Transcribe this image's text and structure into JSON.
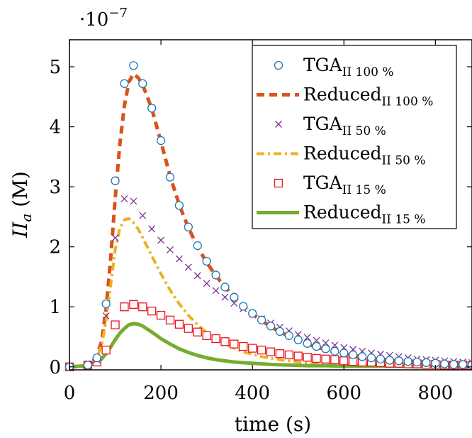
{
  "chart_data": {
    "type": "line",
    "xlabel": "time (s)",
    "ylabel_main": "II",
    "ylabel_sub": "a",
    "ylabel_unit": " (M)",
    "y_exponent_base": "·10",
    "y_exponent_power": "−7",
    "xlim": [
      0,
      880
    ],
    "ylim": [
      -0.05,
      5.45
    ],
    "x_ticks": [
      0,
      200,
      400,
      600,
      800
    ],
    "x_tick_labels": [
      "0",
      "200",
      "400",
      "600",
      "800"
    ],
    "y_ticks": [
      0,
      1,
      2,
      3,
      4,
      5
    ],
    "y_tick_labels": [
      "0",
      "1",
      "2",
      "3",
      "4",
      "5"
    ],
    "grid": false,
    "legend_position": "top-right",
    "series": [
      {
        "name_main": "TGA",
        "name_sub": "II 100 %",
        "style": "marker",
        "marker": "circle",
        "color": "#1f77b4",
        "x": [
          0,
          40,
          60,
          80,
          100,
          120,
          140,
          160,
          180,
          200,
          220,
          240,
          260,
          280,
          300,
          320,
          340,
          360,
          380,
          400,
          420,
          440,
          460,
          480,
          500,
          520,
          540,
          560,
          580,
          600,
          620,
          640,
          660,
          680,
          700,
          720,
          740,
          760,
          780,
          800,
          820,
          840,
          860,
          880
        ],
        "y": [
          0.0,
          0.03,
          0.15,
          1.05,
          3.1,
          4.72,
          5.02,
          4.72,
          4.31,
          3.77,
          3.16,
          2.69,
          2.33,
          2.02,
          1.76,
          1.53,
          1.33,
          1.16,
          1.01,
          0.89,
          0.78,
          0.68,
          0.59,
          0.52,
          0.45,
          0.39,
          0.34,
          0.3,
          0.26,
          0.23,
          0.2,
          0.17,
          0.15,
          0.13,
          0.11,
          0.1,
          0.09,
          0.08,
          0.07,
          0.06,
          0.05,
          0.04,
          0.04,
          0.03
        ]
      },
      {
        "name_main": "Reduced",
        "name_sub": "II 100 %",
        "style": "dashed",
        "color": "#d9531e",
        "x": [
          0,
          30,
          50,
          60,
          70,
          80,
          90,
          100,
          110,
          120,
          130,
          140,
          150,
          160,
          180,
          200,
          220,
          240,
          260,
          280,
          300,
          320,
          340,
          360,
          380,
          400,
          420,
          440,
          460,
          480,
          500,
          520,
          540,
          560,
          580,
          600,
          620,
          640,
          660,
          680,
          700,
          720,
          740,
          760,
          780,
          800,
          820,
          840,
          860,
          880
        ],
        "y": [
          0.0,
          0.01,
          0.08,
          0.18,
          0.42,
          0.95,
          1.8,
          2.8,
          3.7,
          4.35,
          4.75,
          4.88,
          4.82,
          4.7,
          4.3,
          3.75,
          3.18,
          2.7,
          2.32,
          2.0,
          1.74,
          1.52,
          1.33,
          1.16,
          1.01,
          0.88,
          0.77,
          0.67,
          0.58,
          0.51,
          0.44,
          0.38,
          0.33,
          0.29,
          0.25,
          0.22,
          0.19,
          0.17,
          0.15,
          0.13,
          0.11,
          0.1,
          0.09,
          0.08,
          0.07,
          0.06,
          0.05,
          0.05,
          0.04,
          0.04
        ]
      },
      {
        "name_main": "TGA",
        "name_sub": "II 50 %",
        "style": "marker",
        "marker": "cross",
        "color": "#7e2f8e",
        "x": [
          0,
          40,
          60,
          80,
          100,
          120,
          140,
          160,
          180,
          200,
          220,
          240,
          260,
          280,
          300,
          320,
          340,
          360,
          380,
          400,
          420,
          440,
          460,
          480,
          500,
          520,
          540,
          560,
          580,
          600,
          620,
          640,
          660,
          680,
          700,
          720,
          740,
          760,
          780,
          800,
          820,
          840,
          860,
          880
        ],
        "y": [
          0.0,
          0.03,
          0.12,
          0.85,
          2.15,
          2.8,
          2.76,
          2.52,
          2.3,
          2.11,
          1.95,
          1.8,
          1.66,
          1.52,
          1.39,
          1.27,
          1.16,
          1.06,
          0.97,
          0.88,
          0.8,
          0.73,
          0.66,
          0.6,
          0.54,
          0.49,
          0.44,
          0.4,
          0.36,
          0.32,
          0.29,
          0.26,
          0.23,
          0.21,
          0.19,
          0.17,
          0.15,
          0.13,
          0.12,
          0.11,
          0.1,
          0.09,
          0.08,
          0.07
        ]
      },
      {
        "name_main": "Reduced",
        "name_sub": "II 50 %",
        "style": "dashdot",
        "color": "#edb120",
        "x": [
          0,
          30,
          50,
          60,
          70,
          80,
          90,
          100,
          110,
          120,
          130,
          140,
          150,
          160,
          180,
          200,
          220,
          240,
          260,
          280,
          300,
          320,
          340,
          360,
          380,
          400,
          420,
          440,
          460,
          480,
          500,
          520,
          540,
          560,
          600,
          640,
          680,
          720,
          760,
          800,
          840,
          880
        ],
        "y": [
          0.0,
          0.01,
          0.07,
          0.15,
          0.35,
          0.75,
          1.35,
          1.95,
          2.3,
          2.45,
          2.47,
          2.4,
          2.3,
          2.15,
          1.85,
          1.55,
          1.28,
          1.05,
          0.86,
          0.7,
          0.57,
          0.47,
          0.38,
          0.31,
          0.25,
          0.21,
          0.17,
          0.14,
          0.12,
          0.1,
          0.08,
          0.07,
          0.06,
          0.05,
          0.04,
          0.03,
          0.02,
          0.02,
          0.01,
          0.01,
          0.01,
          0.01
        ]
      },
      {
        "name_main": "TGA",
        "name_sub": "II 15 %",
        "style": "marker",
        "marker": "square",
        "color": "#e8141e",
        "x": [
          0,
          40,
          60,
          80,
          100,
          120,
          140,
          160,
          180,
          200,
          220,
          240,
          260,
          280,
          300,
          320,
          340,
          360,
          380,
          400,
          420,
          440,
          460,
          480,
          500,
          520,
          540,
          560,
          580,
          600,
          620,
          640,
          660,
          680,
          700,
          720,
          740,
          760,
          780,
          800,
          820,
          840,
          860,
          880
        ],
        "y": [
          0.0,
          0.03,
          0.08,
          0.28,
          0.7,
          1.0,
          1.04,
          1.0,
          0.93,
          0.86,
          0.78,
          0.71,
          0.64,
          0.58,
          0.52,
          0.47,
          0.42,
          0.38,
          0.34,
          0.31,
          0.28,
          0.25,
          0.22,
          0.2,
          0.18,
          0.16,
          0.14,
          0.13,
          0.12,
          0.1,
          0.09,
          0.08,
          0.08,
          0.07,
          0.06,
          0.06,
          0.05,
          0.05,
          0.04,
          0.04,
          0.03,
          0.03,
          0.03,
          0.02
        ]
      },
      {
        "name_main": "Reduced",
        "name_sub": "II 15 %",
        "style": "solid",
        "color": "#77ac30",
        "x": [
          0,
          40,
          60,
          70,
          80,
          90,
          100,
          110,
          120,
          130,
          140,
          150,
          160,
          180,
          200,
          220,
          240,
          260,
          280,
          300,
          320,
          340,
          360,
          380,
          400,
          440,
          480,
          520,
          560,
          600,
          640,
          680,
          720,
          760,
          800,
          840,
          880
        ],
        "y": [
          0.0,
          0.02,
          0.07,
          0.13,
          0.22,
          0.33,
          0.45,
          0.56,
          0.64,
          0.7,
          0.72,
          0.71,
          0.68,
          0.58,
          0.47,
          0.38,
          0.3,
          0.24,
          0.19,
          0.15,
          0.12,
          0.1,
          0.08,
          0.07,
          0.06,
          0.04,
          0.03,
          0.02,
          0.02,
          0.01,
          0.01,
          0.01,
          0.01,
          0.0,
          0.0,
          0.0,
          0.0
        ]
      }
    ]
  }
}
